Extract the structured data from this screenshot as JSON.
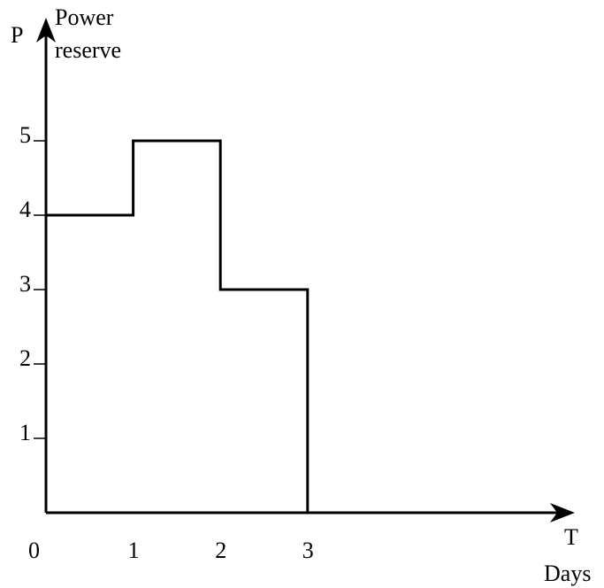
{
  "chart_data": {
    "type": "line",
    "title": "",
    "x_axis": {
      "symbol": "T",
      "label": "Days",
      "ticks": [
        0,
        1,
        2,
        3
      ],
      "range": [
        0,
        5.8
      ]
    },
    "y_axis": {
      "symbol": "P",
      "label_line1": "Power",
      "label_line2": "reserve",
      "ticks": [
        1,
        2,
        3,
        4,
        5
      ],
      "range": [
        0,
        6.3
      ]
    },
    "grid": false,
    "legend": "none",
    "color": "#000000",
    "series": [
      {
        "step": "post",
        "points": [
          {
            "x": 0,
            "y": 4
          },
          {
            "x": 1,
            "y": 4
          },
          {
            "x": 1,
            "y": 5
          },
          {
            "x": 2,
            "y": 5
          },
          {
            "x": 2,
            "y": 3
          },
          {
            "x": 3,
            "y": 3
          },
          {
            "x": 3,
            "y": 0
          },
          {
            "x": 0,
            "y": 0
          }
        ]
      }
    ]
  }
}
